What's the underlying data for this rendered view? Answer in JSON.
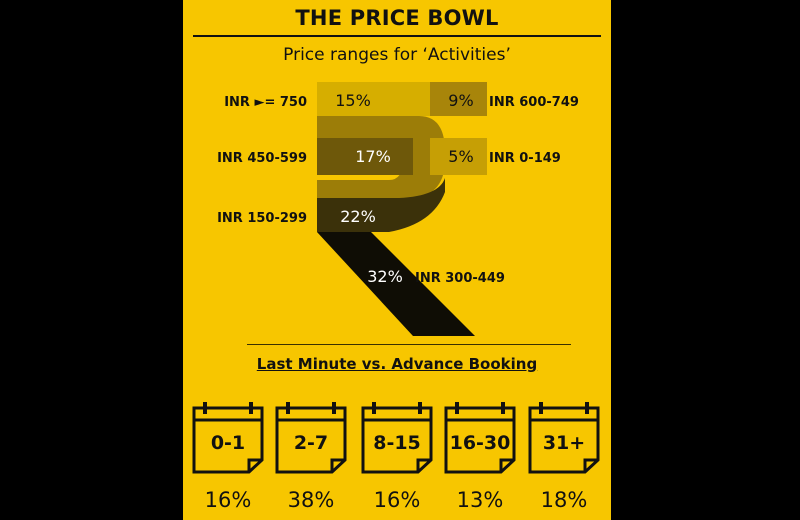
{
  "header": {
    "title": "THE PRICE BOWL",
    "subtitle": "Price ranges for ‘Activities’"
  },
  "colors": {
    "background": "#000000",
    "panel": "#f7c600",
    "ink": "#111111",
    "shade_light": "#d6ae00",
    "shade_mid": "#9c7d08",
    "shade_dark": "#5e4b07",
    "shade_darker": "#3b310a"
  },
  "chart_data": [
    {
      "type": "pie",
      "title": "Price ranges for ‘Activities’",
      "slices": [
        {
          "label": "INR ►= 750",
          "value": 15,
          "display": "15%"
        },
        {
          "label": "INR 600-749",
          "value": 9,
          "display": "9%"
        },
        {
          "label": "INR 450-599",
          "value": 17,
          "display": "17%"
        },
        {
          "label": "INR 0-149",
          "value": 5,
          "display": "5%"
        },
        {
          "label": "INR 150-299",
          "value": 22,
          "display": "22%"
        },
        {
          "label": "INR 300-449",
          "value": 32,
          "display": "32%"
        }
      ]
    },
    {
      "type": "bar",
      "title": "Last Minute vs. Advance Booking",
      "categories": [
        "0-1",
        "2-7",
        "8-15",
        "16-30",
        "31+"
      ],
      "values": [
        16,
        38,
        16,
        13,
        18
      ],
      "display": [
        "16%",
        "38%",
        "16%",
        "13%",
        "18%"
      ]
    }
  ],
  "booking": {
    "title": "Last Minute vs. Advance Booking"
  }
}
